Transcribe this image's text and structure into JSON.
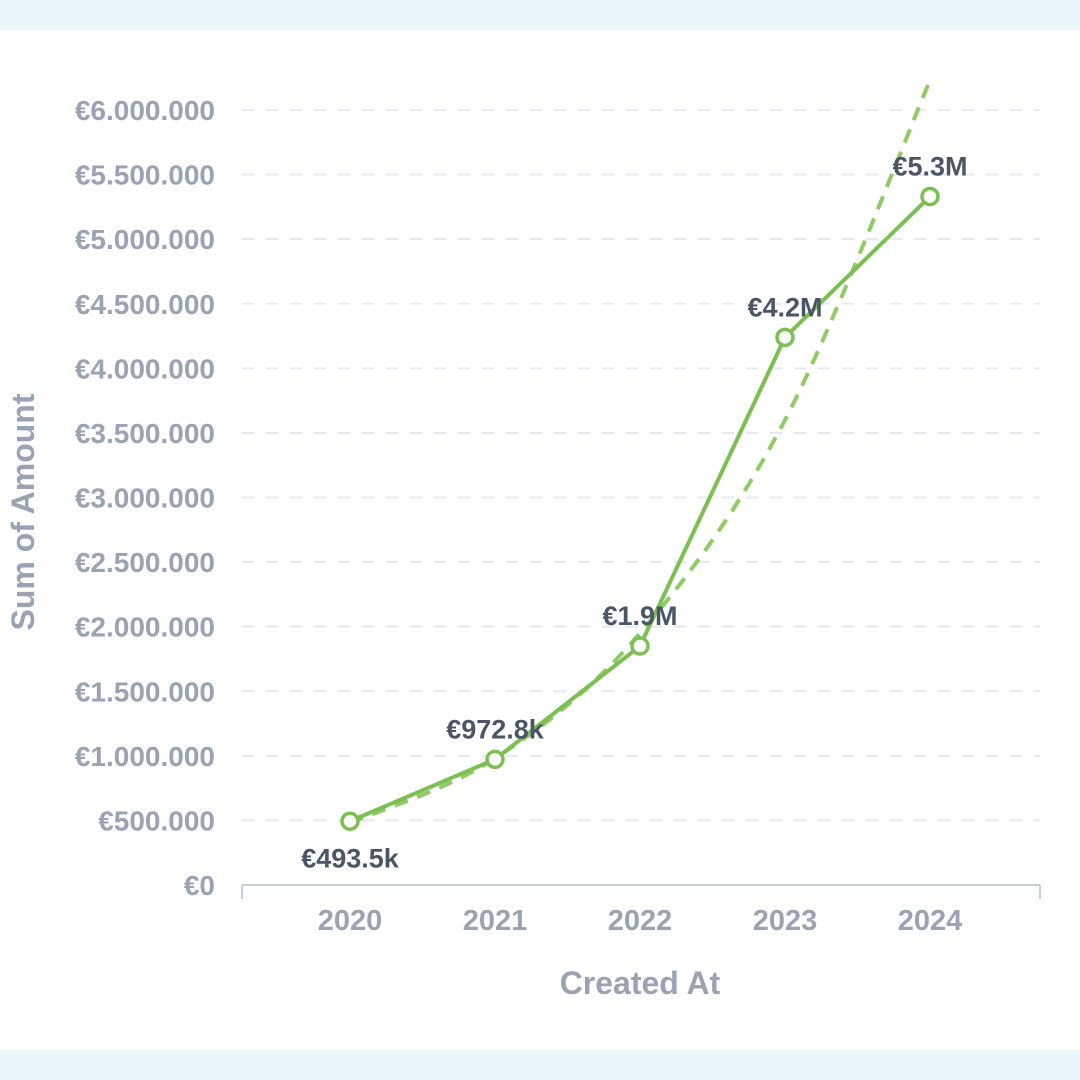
{
  "chart_data": {
    "type": "line",
    "title": "",
    "xlabel": "Created At",
    "ylabel": "Sum of Amount",
    "categories": [
      "2020",
      "2021",
      "2022",
      "2023",
      "2024"
    ],
    "values": [
      493500,
      972800,
      1850000,
      4240000,
      5330000
    ],
    "data_labels": [
      "€493.5k",
      "€972.8k",
      "€1.9M",
      "€4.2M",
      "€5.3M"
    ],
    "y_ticks": [
      {
        "value": 0,
        "label": "€0"
      },
      {
        "value": 500000,
        "label": "€500.000"
      },
      {
        "value": 1000000,
        "label": "€1.000.000"
      },
      {
        "value": 1500000,
        "label": "€1.500.000"
      },
      {
        "value": 2000000,
        "label": "€2.000.000"
      },
      {
        "value": 2500000,
        "label": "€2.500.000"
      },
      {
        "value": 3000000,
        "label": "€3.000.000"
      },
      {
        "value": 3500000,
        "label": "€3.500.000"
      },
      {
        "value": 4000000,
        "label": "€4.000.000"
      },
      {
        "value": 4500000,
        "label": "€4.500.000"
      },
      {
        "value": 5000000,
        "label": "€5.000.000"
      },
      {
        "value": 5500000,
        "label": "€5.500.000"
      },
      {
        "value": 6000000,
        "label": "€6.000.000"
      }
    ],
    "ylim": [
      0,
      6000000
    ],
    "trendline": {
      "style": "dashed",
      "x": [
        "2020",
        "2021",
        "2022",
        "2023",
        "2024"
      ],
      "values": [
        480000,
        980000,
        1950000,
        3600000,
        6230000
      ]
    },
    "grid": true,
    "legend": "none",
    "colors": {
      "line": "#7cbf52",
      "trend": "#8fcc66",
      "grid": "#e5e8ec",
      "axis": "#c9ced6",
      "tick_text": "#99a3b3",
      "label_text": "#4a5566"
    }
  }
}
